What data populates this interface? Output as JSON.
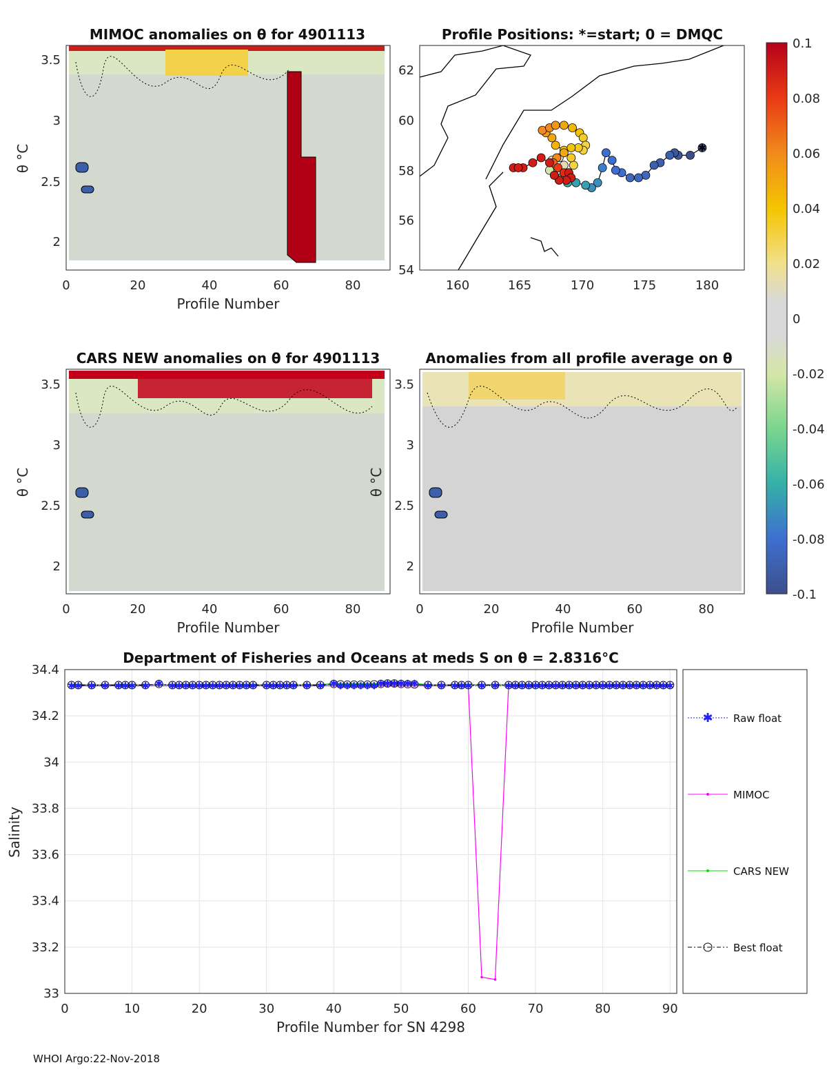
{
  "panels": {
    "mimoc": {
      "title": "MIMOC anomalies on θ  for 4901113",
      "xlabel": "Profile Number",
      "ylabel": "θ °C",
      "xticks": [
        "0",
        "20",
        "40",
        "60",
        "80"
      ],
      "yticks": [
        "2",
        "2.5",
        "3",
        "3.5"
      ]
    },
    "positions": {
      "title": "Profile Positions: *=start; 0 = DMQC",
      "xticks": [
        "160",
        "165",
        "170",
        "175",
        "180"
      ],
      "yticks": [
        "54",
        "56",
        "58",
        "60",
        "62"
      ]
    },
    "cars": {
      "title": "CARS NEW anomalies on θ for 4901113",
      "xlabel": "Profile Number",
      "ylabel": "θ °C",
      "xticks": [
        "0",
        "20",
        "40",
        "60",
        "80"
      ],
      "yticks": [
        "2",
        "2.5",
        "3",
        "3.5"
      ]
    },
    "avg": {
      "title": "Anomalies from all profile average on θ",
      "xlabel": "Profile Number",
      "ylabel": "θ °C",
      "xticks": [
        "0",
        "20",
        "40",
        "60",
        "80"
      ],
      "yticks": [
        "2",
        "2.5",
        "3",
        "3.5"
      ]
    }
  },
  "colorbar": {
    "ticks": [
      "0.1",
      "0.08",
      "0.06",
      "0.04",
      "0.02",
      "0",
      "-0.02",
      "-0.04",
      "-0.06",
      "-0.08",
      "-0.1"
    ],
    "range": [
      -0.1,
      0.1
    ]
  },
  "footer": "WHOI Argo:22-Nov-2018",
  "chart_data": {
    "type": "line",
    "title": "Department of Fisheries and Oceans at meds S on θ = 2.8316°C",
    "xlabel": "Profile Number for SN 4298",
    "ylabel": "Salinity",
    "xlim": [
      0,
      91
    ],
    "ylim": [
      33,
      34.4
    ],
    "xticks": [
      "0",
      "10",
      "20",
      "30",
      "40",
      "50",
      "60",
      "70",
      "80",
      "90"
    ],
    "yticks": [
      "33",
      "33.2",
      "33.4",
      "33.6",
      "33.8",
      "34",
      "34.2",
      "34.4"
    ],
    "grid": true,
    "legend_placement": "right",
    "x": [
      1,
      2,
      4,
      6,
      8,
      9,
      10,
      12,
      14,
      16,
      17,
      18,
      19,
      20,
      21,
      22,
      23,
      24,
      25,
      26,
      27,
      28,
      30,
      31,
      32,
      33,
      34,
      36,
      38,
      40,
      41,
      42,
      43,
      44,
      45,
      46,
      47,
      48,
      49,
      50,
      51,
      52,
      54,
      56,
      58,
      59,
      60,
      62,
      64,
      66,
      67,
      68,
      69,
      70,
      71,
      72,
      73,
      74,
      75,
      76,
      77,
      78,
      79,
      80,
      81,
      82,
      83,
      84,
      85,
      86,
      87,
      88,
      89,
      90
    ],
    "series": [
      {
        "name": "Raw float",
        "color": "#2020ff",
        "values": [
          34.33,
          34.33,
          34.33,
          34.33,
          34.33,
          34.33,
          34.33,
          34.33,
          34.34,
          34.33,
          34.33,
          34.33,
          34.33,
          34.33,
          34.33,
          34.33,
          34.33,
          34.33,
          34.33,
          34.33,
          34.33,
          34.33,
          34.33,
          34.33,
          34.33,
          34.33,
          34.33,
          34.33,
          34.33,
          34.34,
          34.33,
          34.33,
          34.33,
          34.33,
          34.33,
          34.33,
          34.34,
          34.34,
          34.34,
          34.34,
          34.34,
          34.34,
          34.33,
          34.33,
          34.33,
          34.33,
          34.33,
          34.33,
          34.33,
          34.33,
          34.33,
          34.33,
          34.33,
          34.33,
          34.33,
          34.33,
          34.33,
          34.33,
          34.33,
          34.33,
          34.33,
          34.33,
          34.33,
          34.33,
          34.33,
          34.33,
          34.33,
          34.33,
          34.33,
          34.33,
          34.33,
          34.33,
          34.33,
          34.33
        ]
      },
      {
        "name": "MIMOC",
        "color": "#ff00ff",
        "values": [
          34.33,
          34.33,
          34.33,
          34.33,
          34.33,
          34.33,
          34.33,
          34.33,
          34.33,
          34.33,
          34.33,
          34.33,
          34.33,
          34.33,
          34.33,
          34.33,
          34.33,
          34.33,
          34.33,
          34.33,
          34.33,
          34.33,
          34.33,
          34.33,
          34.33,
          34.33,
          34.33,
          34.33,
          34.33,
          34.33,
          34.33,
          34.33,
          34.33,
          34.33,
          34.33,
          34.33,
          34.33,
          34.33,
          34.33,
          34.33,
          34.33,
          34.33,
          34.33,
          34.33,
          34.33,
          34.33,
          34.33,
          33.07,
          33.06,
          34.33,
          34.33,
          34.33,
          34.33,
          34.33,
          34.33,
          34.33,
          34.33,
          34.33,
          34.33,
          34.33,
          34.33,
          34.33,
          34.33,
          34.33,
          34.33,
          34.33,
          34.33,
          34.33,
          34.33,
          34.33,
          34.33,
          34.33,
          34.33,
          34.33
        ]
      },
      {
        "name": "CARS NEW",
        "color": "#00e000",
        "values": [
          34.335,
          34.335,
          34.335,
          34.335,
          34.335,
          34.335,
          34.335,
          34.335,
          34.335,
          34.335,
          34.335,
          34.335,
          34.335,
          34.335,
          34.335,
          34.335,
          34.335,
          34.335,
          34.335,
          34.335,
          34.335,
          34.335,
          34.335,
          34.335,
          34.335,
          34.335,
          34.335,
          34.335,
          34.335,
          34.34,
          34.34,
          34.34,
          34.34,
          34.34,
          34.34,
          34.34,
          34.34,
          34.345,
          34.345,
          34.34,
          34.34,
          34.34,
          34.335,
          34.335,
          34.335,
          34.335,
          34.335,
          34.335,
          34.335,
          34.335,
          34.335,
          34.335,
          34.335,
          34.335,
          34.335,
          34.335,
          34.335,
          34.335,
          34.335,
          34.335,
          34.335,
          34.335,
          34.335,
          34.335,
          34.335,
          34.335,
          34.335,
          34.335,
          34.335,
          34.335,
          34.335,
          34.335,
          34.335,
          34.335
        ]
      },
      {
        "name": "Best float",
        "color": "#000000",
        "values": [
          34.333,
          34.333,
          34.333,
          34.333,
          34.333,
          34.333,
          34.333,
          34.333,
          34.338,
          34.333,
          34.333,
          34.333,
          34.333,
          34.333,
          34.333,
          34.333,
          34.333,
          34.333,
          34.333,
          34.333,
          34.333,
          34.333,
          34.333,
          34.333,
          34.333,
          34.333,
          34.333,
          34.333,
          34.333,
          34.338,
          34.336,
          34.335,
          34.335,
          34.335,
          34.335,
          34.336,
          34.338,
          34.34,
          34.34,
          34.338,
          34.337,
          34.336,
          34.333,
          34.333,
          34.333,
          34.333,
          34.333,
          34.333,
          34.333,
          34.333,
          34.333,
          34.333,
          34.333,
          34.333,
          34.333,
          34.333,
          34.333,
          34.333,
          34.333,
          34.333,
          34.333,
          34.333,
          34.333,
          34.333,
          34.333,
          34.333,
          34.333,
          34.333,
          34.333,
          34.333,
          34.333,
          34.333,
          34.333,
          34.333
        ]
      }
    ],
    "positions_scatter": {
      "type": "scatter",
      "xlim": [
        156,
        183
      ],
      "ylim": [
        54,
        63
      ],
      "x": [
        179.5,
        178.5,
        177.5,
        177.2,
        176.8,
        176,
        175.5,
        174.8,
        174.2,
        173.5,
        172.8,
        172.3,
        172,
        171.5,
        171.2,
        170.8,
        170.3,
        169.8,
        169,
        168.3,
        167.8,
        167.2,
        166.8,
        167,
        167.6,
        168,
        168.4,
        168.8,
        168.6,
        168,
        167.3,
        167,
        166.5,
        166.2,
        166.8,
        167.3,
        168,
        168.7,
        169.3,
        169.6,
        169.8,
        169.6,
        169.2,
        168.6,
        168,
        167.4,
        167.1,
        167.5,
        168,
        168.4,
        168.6,
        168.2,
        167.6,
        167.2,
        166.8,
        166.1,
        165.4,
        164.6,
        163.8,
        164.2
      ],
      "y": [
        58.9,
        58.6,
        58.6,
        58.7,
        58.6,
        58.3,
        58.2,
        57.8,
        57.7,
        57.7,
        57.9,
        58.0,
        58.4,
        58.7,
        58.1,
        57.5,
        57.3,
        57.4,
        57.5,
        57.5,
        57.7,
        57.8,
        58.0,
        58.4,
        58.5,
        58.2,
        57.9,
        58.2,
        58.5,
        58.8,
        59.0,
        59.3,
        59.5,
        59.6,
        59.7,
        59.8,
        59.8,
        59.7,
        59.5,
        59.3,
        59.0,
        58.8,
        58.9,
        58.9,
        58.7,
        58.5,
        58.3,
        58.1,
        57.9,
        57.9,
        57.7,
        57.6,
        57.6,
        57.8,
        58.3,
        58.5,
        58.3,
        58.1,
        58.1,
        58.1
      ],
      "color_values": [
        -0.1,
        -0.1,
        -0.095,
        -0.095,
        -0.09,
        -0.09,
        -0.09,
        -0.085,
        -0.085,
        -0.085,
        -0.08,
        -0.08,
        -0.08,
        -0.08,
        -0.075,
        -0.07,
        -0.07,
        -0.065,
        -0.065,
        -0.06,
        -0.04,
        -0.03,
        -0.02,
        -0.01,
        0,
        0.01,
        0.02,
        0.03,
        0.035,
        0.04,
        0.045,
        0.05,
        0.055,
        0.06,
        0.06,
        0.055,
        0.05,
        0.045,
        0.04,
        0.035,
        0.03,
        0.03,
        0.035,
        0.04,
        0.05,
        0.06,
        0.07,
        0.08,
        0.085,
        0.09,
        0.09,
        0.09,
        0.09,
        0.09,
        0.09,
        0.09,
        0.09,
        0.09,
        0.09,
        0.09
      ]
    }
  }
}
